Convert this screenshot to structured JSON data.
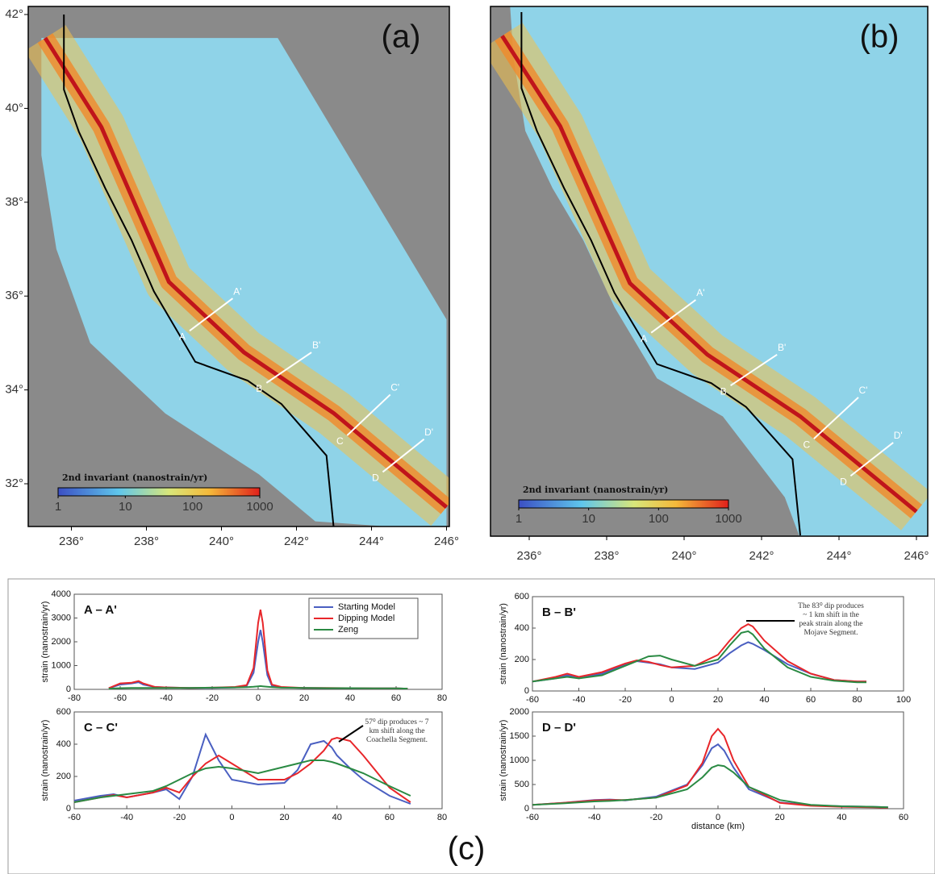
{
  "maps": [
    {
      "label": "(a)",
      "lat_ticks": [
        {
          "value": 42,
          "label": "42°"
        },
        {
          "value": 40,
          "label": "40°"
        },
        {
          "value": 38,
          "label": "38°"
        },
        {
          "value": 36,
          "label": "36°"
        },
        {
          "value": 34,
          "label": "34°"
        },
        {
          "value": 32,
          "label": "32°"
        }
      ],
      "lon_ticks": [
        {
          "value": 236,
          "label": "236°"
        },
        {
          "value": 238,
          "label": "238°"
        },
        {
          "value": 240,
          "label": "240°"
        },
        {
          "value": 242,
          "label": "242°"
        },
        {
          "value": 244,
          "label": "244°"
        },
        {
          "value": 246,
          "label": "246°"
        }
      ],
      "colorbar": {
        "title": "2nd invariant (nanostrain/yr)",
        "ticks": [
          1,
          10,
          100,
          1000
        ],
        "log": true
      },
      "profiles": [
        [
          "A",
          "A'"
        ],
        [
          "B",
          "B'"
        ],
        [
          "C",
          "C'"
        ],
        [
          "D",
          "D'"
        ]
      ]
    },
    {
      "label": "(b)",
      "lon_ticks": [
        {
          "value": 236,
          "label": "236°"
        },
        {
          "value": 238,
          "label": "238°"
        },
        {
          "value": 240,
          "label": "240°"
        },
        {
          "value": 242,
          "label": "242°"
        },
        {
          "value": 244,
          "label": "244°"
        },
        {
          "value": 246,
          "label": "246°"
        }
      ],
      "colorbar": {
        "title": "2nd invariant (nanostrain/yr)",
        "ticks": [
          1,
          10,
          100,
          1000
        ],
        "log": true
      },
      "profiles": [
        [
          "A",
          "A'"
        ],
        [
          "B",
          "B'"
        ],
        [
          "C",
          "C'"
        ],
        [
          "D",
          "D'"
        ]
      ]
    }
  ],
  "chart_data": [
    {
      "type": "line",
      "title": "A – A'",
      "ylabel": "strain (nanostrain/yr)",
      "legend": "upper right",
      "x": [
        -65,
        -60,
        -55,
        -52,
        -50,
        -45,
        -40,
        -30,
        -20,
        -10,
        -5,
        -2,
        0,
        1,
        2,
        4,
        6,
        10,
        20,
        30,
        40,
        50,
        60,
        65
      ],
      "series": [
        {
          "name": "Starting Model",
          "color": "#4a5fc1",
          "values": [
            50,
            200,
            250,
            300,
            200,
            100,
            80,
            60,
            60,
            80,
            150,
            700,
            2000,
            2500,
            2000,
            600,
            150,
            80,
            60,
            50,
            50,
            40,
            40,
            30
          ]
        },
        {
          "name": "Dipping Model",
          "color": "#e8262a",
          "values": [
            50,
            250,
            280,
            350,
            250,
            100,
            80,
            60,
            70,
            100,
            180,
            900,
            2800,
            3350,
            2800,
            800,
            200,
            100,
            60,
            60,
            50,
            40,
            40,
            30
          ]
        },
        {
          "name": "Zeng",
          "color": "#2a8a43",
          "values": [
            30,
            50,
            60,
            60,
            60,
            60,
            60,
            60,
            70,
            80,
            90,
            110,
            130,
            140,
            130,
            110,
            90,
            70,
            60,
            50,
            50,
            40,
            40,
            30
          ]
        }
      ],
      "xlim": [
        -80,
        80
      ],
      "xticks": [
        -80,
        -60,
        -40,
        -20,
        0,
        20,
        40,
        60,
        80
      ],
      "ylim": [
        0,
        4000
      ],
      "yticks": [
        0,
        1000,
        2000,
        3000,
        4000
      ]
    },
    {
      "type": "line",
      "title": "B – B'",
      "ylabel": "strain (nanostrain/yr)",
      "annotation": [
        "The 83⁰ dip produces",
        "~ 1 km shift in the",
        "peak strain along the",
        "Mojave Segment."
      ],
      "x": [
        -60,
        -50,
        -45,
        -40,
        -30,
        -20,
        -15,
        -10,
        -5,
        0,
        10,
        20,
        25,
        30,
        33,
        35,
        40,
        50,
        60,
        70,
        80,
        84
      ],
      "series": [
        {
          "color": "#4a5fc1",
          "values": [
            60,
            80,
            100,
            80,
            110,
            170,
            190,
            180,
            170,
            150,
            140,
            180,
            240,
            290,
            310,
            300,
            260,
            170,
            110,
            70,
            60,
            60
          ]
        },
        {
          "color": "#e8262a",
          "values": [
            60,
            90,
            110,
            90,
            120,
            175,
            195,
            185,
            165,
            150,
            160,
            230,
            320,
            400,
            425,
            410,
            320,
            190,
            110,
            70,
            60,
            60
          ]
        },
        {
          "color": "#2a8a43",
          "values": [
            60,
            80,
            90,
            80,
            100,
            160,
            190,
            220,
            225,
            200,
            160,
            200,
            290,
            370,
            380,
            360,
            270,
            150,
            90,
            65,
            55,
            55
          ]
        }
      ],
      "xlim": [
        -60,
        100
      ],
      "xticks": [
        -60,
        -40,
        -20,
        0,
        20,
        40,
        60,
        80,
        100
      ],
      "ylim": [
        0,
        600
      ],
      "yticks": [
        0,
        200,
        400,
        600
      ]
    },
    {
      "type": "line",
      "title": "C – C'",
      "ylabel": "strain (nanostrain/yr)",
      "annotation": [
        "57⁰ dip produces ~ 7",
        "km shift along the",
        "Coachella Segment."
      ],
      "x": [
        -60,
        -50,
        -45,
        -40,
        -30,
        -25,
        -20,
        -15,
        -10,
        -5,
        0,
        10,
        20,
        25,
        30,
        35,
        38,
        40,
        45,
        50,
        60,
        68
      ],
      "series": [
        {
          "color": "#4a5fc1",
          "values": [
            50,
            80,
            90,
            70,
            100,
            120,
            60,
            200,
            460,
            300,
            180,
            150,
            160,
            240,
            400,
            420,
            380,
            330,
            250,
            180,
            80,
            30
          ]
        },
        {
          "color": "#e8262a",
          "values": [
            40,
            70,
            85,
            70,
            100,
            130,
            100,
            200,
            280,
            330,
            280,
            180,
            180,
            220,
            280,
            360,
            430,
            440,
            420,
            330,
            130,
            40
          ]
        },
        {
          "color": "#2a8a43",
          "values": [
            40,
            70,
            80,
            90,
            110,
            140,
            180,
            220,
            250,
            260,
            250,
            220,
            260,
            280,
            300,
            300,
            290,
            280,
            250,
            220,
            140,
            80
          ]
        }
      ],
      "xlim": [
        -60,
        80
      ],
      "xticks": [
        -60,
        -40,
        -20,
        0,
        20,
        40,
        60,
        80
      ],
      "ylim": [
        0,
        600
      ],
      "yticks": [
        0,
        200,
        400,
        600
      ]
    },
    {
      "type": "line",
      "title": "D – D'",
      "ylabel": "strain (nanostrain/yr)",
      "xlabel": "distance (km)",
      "x": [
        -60,
        -50,
        -40,
        -35,
        -30,
        -20,
        -10,
        -5,
        -2,
        0,
        2,
        5,
        10,
        20,
        30,
        40,
        50,
        55
      ],
      "series": [
        {
          "color": "#4a5fc1",
          "values": [
            80,
            120,
            180,
            190,
            170,
            250,
            500,
            900,
            1250,
            1330,
            1200,
            850,
            400,
            130,
            70,
            50,
            40,
            30
          ]
        },
        {
          "color": "#e8262a",
          "values": [
            80,
            120,
            170,
            180,
            180,
            230,
            480,
            950,
            1500,
            1650,
            1500,
            1000,
            450,
            120,
            60,
            40,
            30,
            20
          ]
        },
        {
          "color": "#2a8a43",
          "values": [
            80,
            110,
            150,
            160,
            180,
            230,
            400,
            650,
            850,
            900,
            880,
            750,
            450,
            180,
            80,
            50,
            40,
            30
          ]
        }
      ],
      "xlim": [
        -60,
        60
      ],
      "xticks": [
        -60,
        -40,
        -20,
        0,
        20,
        40,
        60
      ],
      "ylim": [
        0,
        2000
      ],
      "yticks": [
        0,
        500,
        1000,
        1500,
        2000
      ]
    }
  ],
  "panel_label": "(c)"
}
